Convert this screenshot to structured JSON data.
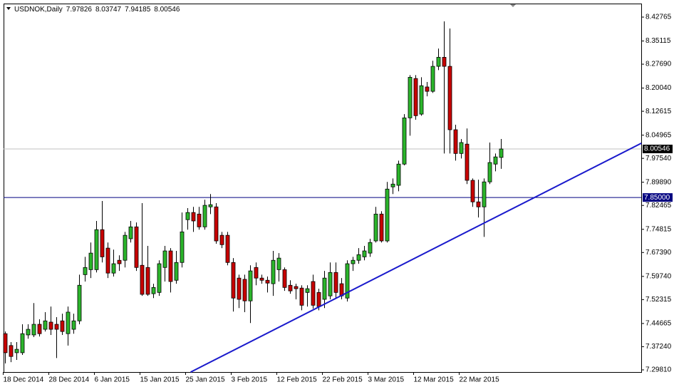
{
  "chart_data": {
    "type": "candlestick",
    "title": "USDNOK,Daily",
    "categories": [
      "18 Dec 2014",
      null,
      null,
      null,
      null,
      null,
      null,
      null,
      "28 Dec 2014",
      null,
      null,
      null,
      null,
      null,
      null,
      null,
      "6 Jan 2015",
      null,
      null,
      null,
      null,
      null,
      null,
      null,
      "15 Jan 2015",
      null,
      null,
      null,
      null,
      null,
      null,
      null,
      "25 Jan 2015",
      null,
      null,
      null,
      null,
      null,
      null,
      null,
      "3 Feb 2015",
      null,
      null,
      null,
      null,
      null,
      null,
      null,
      "12 Feb 2015",
      null,
      null,
      null,
      null,
      null,
      null,
      null,
      "22 Feb 2015",
      null,
      null,
      null,
      null,
      null,
      null,
      null,
      "3 Mar 2015",
      null,
      null,
      null,
      null,
      null,
      null,
      null,
      "12 Mar 2015",
      null,
      null,
      null,
      null,
      null,
      null,
      null,
      "22 Mar 2015",
      null,
      null,
      null,
      null,
      null,
      null,
      null
    ],
    "open": [
      7.414,
      7.376,
      7.353,
      7.353,
      7.41,
      7.41,
      7.444,
      7.428,
      7.451,
      7.444,
      7.455,
      7.414,
      7.428,
      7.455,
      7.603,
      7.619,
      7.619,
      7.747,
      7.688,
      7.608,
      7.649,
      7.649,
      7.718,
      7.756,
      7.633,
      7.626,
      7.542,
      7.546,
      7.626,
      7.679,
      7.585,
      7.642,
      7.779,
      7.802,
      7.797,
      7.756,
      7.82,
      7.82,
      7.729,
      7.729,
      7.642,
      7.592,
      7.588,
      7.519,
      7.626,
      7.592,
      7.585,
      7.574,
      7.619,
      7.619,
      7.569,
      7.565,
      7.56,
      7.546,
      7.581,
      7.546,
      7.524,
      7.535,
      7.61,
      7.574,
      7.528,
      7.638,
      7.649,
      7.66,
      7.672,
      7.711,
      7.797,
      7.711,
      7.884,
      7.889,
      7.957,
      8.105,
      8.231,
      8.117,
      8.204,
      8.19,
      8.27,
      8.299,
      8.27,
      8.067,
      7.991,
      8.021,
      7.905,
      7.836,
      7.82,
      7.9,
      7.957,
      7.97826
    ],
    "high": [
      7.421,
      7.387,
      7.387,
      7.444,
      7.444,
      7.512,
      7.46,
      7.483,
      7.501,
      7.467,
      7.478,
      7.501,
      7.478,
      7.603,
      7.66,
      7.706,
      7.775,
      7.839,
      7.706,
      7.683,
      7.665,
      7.74,
      7.775,
      7.77,
      7.832,
      7.695,
      7.574,
      7.649,
      7.695,
      7.688,
      7.679,
      7.802,
      7.816,
      7.82,
      7.82,
      7.843,
      7.861,
      7.832,
      7.74,
      7.74,
      7.656,
      7.603,
      7.603,
      7.633,
      7.642,
      7.603,
      7.597,
      7.679,
      7.672,
      7.626,
      7.585,
      7.574,
      7.569,
      7.569,
      7.603,
      7.558,
      7.615,
      7.642,
      7.642,
      7.592,
      7.649,
      7.66,
      7.688,
      7.695,
      7.718,
      7.82,
      7.806,
      7.9,
      7.911,
      7.968,
      8.117,
      8.242,
      8.242,
      8.235,
      8.22,
      8.288,
      8.327,
      8.414,
      8.391,
      8.083,
      8.037,
      8.071,
      7.911,
      7.907,
      7.911,
      8.026,
      7.991,
      8.03747
    ],
    "low": [
      7.319,
      7.323,
      7.33,
      7.346,
      7.398,
      7.403,
      7.405,
      7.421,
      7.41,
      7.336,
      7.41,
      7.376,
      7.414,
      7.444,
      7.581,
      7.592,
      7.61,
      7.642,
      7.592,
      7.597,
      7.615,
      7.626,
      7.706,
      7.615,
      7.535,
      7.535,
      7.528,
      7.535,
      7.581,
      7.546,
      7.574,
      7.626,
      7.747,
      7.74,
      7.747,
      7.747,
      7.797,
      7.702,
      7.688,
      7.633,
      7.485,
      7.496,
      7.483,
      7.448,
      7.569,
      7.574,
      7.546,
      7.535,
      7.581,
      7.551,
      7.542,
      7.524,
      7.489,
      7.501,
      7.494,
      7.489,
      7.496,
      7.524,
      7.528,
      7.524,
      7.517,
      7.615,
      7.638,
      7.649,
      7.66,
      7.706,
      7.706,
      7.706,
      7.861,
      7.87,
      7.953,
      8.048,
      8.099,
      8.112,
      8.174,
      8.185,
      8.258,
      7.991,
      7.991,
      7.968,
      7.975,
      7.893,
      7.82,
      7.786,
      7.724,
      7.893,
      7.934,
      7.94185
    ],
    "close": [
      7.353,
      7.341,
      7.364,
      7.414,
      7.428,
      7.444,
      7.414,
      7.455,
      7.428,
      7.428,
      7.421,
      7.483,
      7.455,
      7.569,
      7.626,
      7.672,
      7.747,
      7.66,
      7.608,
      7.638,
      7.638,
      7.729,
      7.756,
      7.626,
      7.54,
      7.54,
      7.562,
      7.638,
      7.679,
      7.581,
      7.642,
      7.74,
      7.802,
      7.775,
      7.756,
      7.825,
      7.827,
      7.711,
      7.699,
      7.642,
      7.528,
      7.524,
      7.519,
      7.615,
      7.592,
      7.585,
      7.576,
      7.649,
      7.656,
      7.562,
      7.551,
      7.558,
      7.505,
      7.558,
      7.505,
      7.501,
      7.592,
      7.61,
      7.546,
      7.535,
      7.638,
      7.649,
      7.667,
      7.679,
      7.706,
      7.797,
      7.711,
      7.877,
      7.893,
      7.957,
      8.105,
      8.235,
      8.112,
      8.208,
      8.19,
      8.27,
      8.299,
      8.27,
      8.067,
      7.991,
      8.026,
      7.905,
      7.836,
      7.82,
      7.9,
      7.962,
      7.98,
      8.00546
    ],
    "up_color": "#2bb52b",
    "down_color": "#c80000",
    "ylim": [
      7.2912,
      8.471
    ],
    "yticks": [
      8.42765,
      8.35115,
      {
        "value": 8.2769,
        "label": "8.27690"
      },
      {
        "value": 8.2004,
        "label": "8.20040"
      },
      8.12615,
      8.04965,
      {
        "value": 7.9754,
        "label": "7.97540"
      },
      {
        "value": 7.8989,
        "label": "7.89890"
      },
      7.82465,
      7.74815,
      {
        "value": 7.6739,
        "label": "7.67390"
      },
      {
        "value": 7.5974,
        "label": "7.59740"
      },
      7.52315,
      7.44665,
      {
        "value": 7.3724,
        "label": "7.37240"
      },
      {
        "value": 7.2981,
        "label": "7.29810"
      }
    ],
    "hline": {
      "value": 7.85,
      "label": "7.85000",
      "color": "#000080"
    },
    "trendline": {
      "x": [
        32.5,
        111.6
      ],
      "y": [
        7.291,
        8.024
      ],
      "color": "#1a1acc"
    }
  }
}
